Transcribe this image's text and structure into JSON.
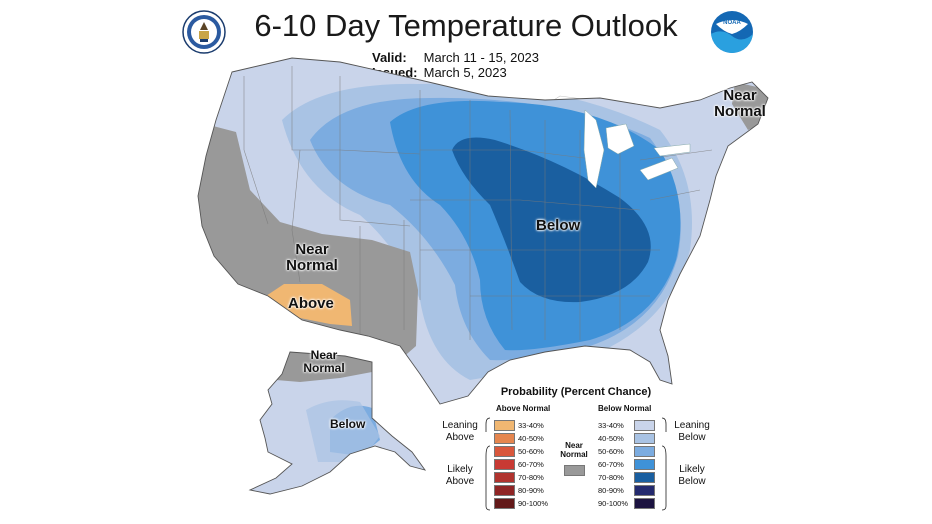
{
  "title": "6-10 Day Temperature Outlook",
  "valid_label": "Valid:",
  "valid_value": "March 11 - 15, 2023",
  "issued_label": "Issued:",
  "issued_value": "March 5, 2023",
  "logos": {
    "left": "department-of-commerce-seal-icon",
    "right": "noaa-logo-icon"
  },
  "map_labels": {
    "below": "Below",
    "near_normal_west": [
      "Near",
      "Normal"
    ],
    "above_sw": "Above",
    "near_normal_ne": [
      "Near",
      "Normal"
    ],
    "near_normal_ak": [
      "Near",
      "Normal"
    ],
    "below_ak": "Below"
  },
  "legend": {
    "title": "Probability (Percent Chance)",
    "above_header": "Above Normal",
    "below_header": "Below Normal",
    "near_normal": [
      "Near",
      "Normal"
    ],
    "near_normal_color": "#999999",
    "leaning_above": [
      "Leaning",
      "Above"
    ],
    "likely_above": [
      "Likely",
      "Above"
    ],
    "leaning_below": [
      "Leaning",
      "Below"
    ],
    "likely_below": [
      "Likely",
      "Below"
    ],
    "categories": [
      "33-40%",
      "40-50%",
      "50-60%",
      "60-70%",
      "70-80%",
      "80-90%",
      "90-100%"
    ],
    "above_colors": [
      "#f0b772",
      "#e5864f",
      "#d9573c",
      "#c83a34",
      "#b0332e",
      "#8f2525",
      "#631919"
    ],
    "below_colors": [
      "#c9d4ea",
      "#a9c3e4",
      "#7cace0",
      "#3f92d8",
      "#1a5fa0",
      "#242a6e",
      "#1c1340"
    ]
  },
  "colors": {
    "leaning_below": "#c9d4ea",
    "below_40_50": "#a9c3e4",
    "below_50_60": "#7cace0",
    "below_60_70": "#3f92d8",
    "below_70_80": "#1a5fa0",
    "near_normal": "#999999",
    "above_33_40": "#f0b772"
  }
}
